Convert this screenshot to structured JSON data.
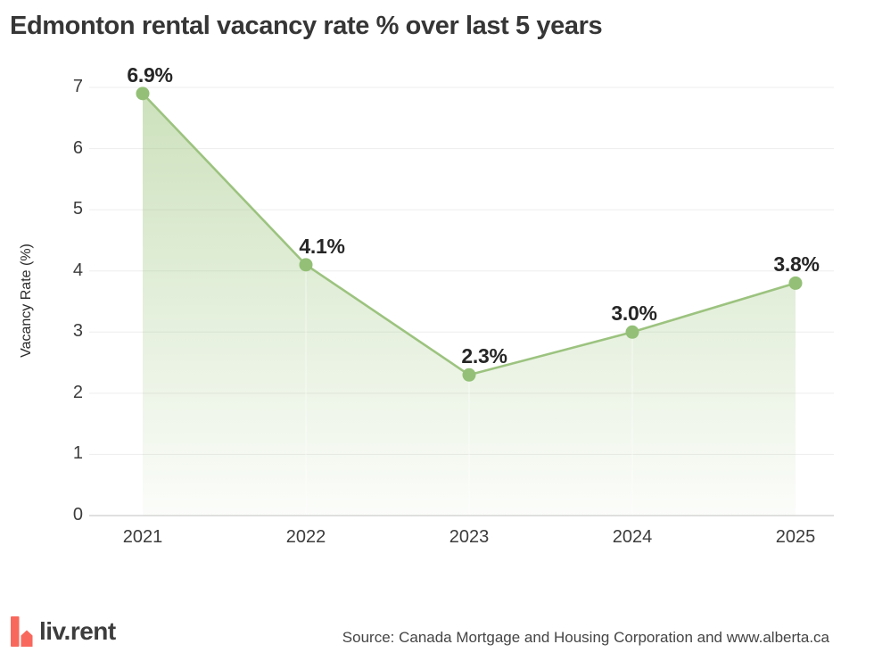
{
  "title": "Edmonton rental vacancy rate % over last 5 years",
  "footer": {
    "logo_text": "liv.rent",
    "source": "Source: Canada Mortgage and Housing Corporation and www.alberta.ca"
  },
  "colors": {
    "line_green": "#9cc37f",
    "dot_green": "#93c076",
    "area_green": "#9ec67f",
    "gridline": "#ededed",
    "axis_line": "#d6d6d6",
    "title_text": "#363636",
    "tick_text": "#3c3c3c",
    "logo_coral": "#f9685c"
  },
  "chart_data": {
    "type": "area",
    "title": "Edmonton rental vacancy rate % over last 5 years",
    "x": [
      "2021",
      "2022",
      "2023",
      "2024",
      "2025"
    ],
    "values": [
      6.9,
      4.1,
      2.3,
      3.0,
      3.8
    ],
    "point_labels": [
      "6.9%",
      "4.1%",
      "2.3%",
      "3.0%",
      "3.8%"
    ],
    "xlabel": "",
    "ylabel": "Vacancy Rate (%)",
    "ylim": [
      0,
      7
    ],
    "yticks": [
      0,
      1,
      2,
      3,
      4,
      5,
      6,
      7
    ],
    "grid": "horizontal",
    "legend": "none"
  }
}
